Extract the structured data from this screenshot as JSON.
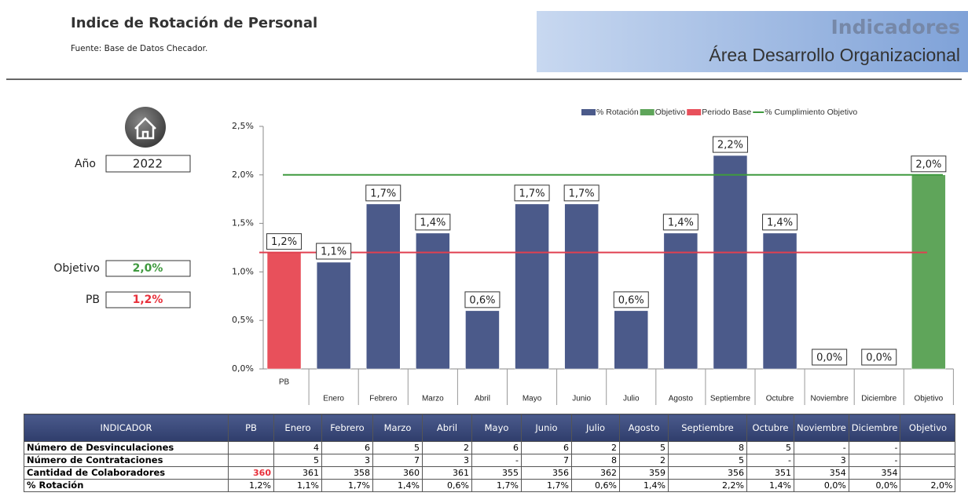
{
  "header": {
    "title": "Indice de Rotación de Personal",
    "source": "Fuente: Base de Datos Checador.",
    "banner_title": "Indicadores",
    "banner_subtitle": "Área Desarrollo Organizacional"
  },
  "filters": {
    "year_label": "Año",
    "year": 2022,
    "objective_label": "Objetivo",
    "objective": "2,0%",
    "pb_label": "PB",
    "pb": "1,2%"
  },
  "chart_data": {
    "type": "bar",
    "categories": [
      "PB",
      "Enero",
      "Febrero",
      "Marzo",
      "Abril",
      "Mayo",
      "Junio",
      "Julio",
      "Agosto",
      "Septiembre",
      "Octubre",
      "Noviembre",
      "Diciembre",
      "Objetivo"
    ],
    "values": [
      1.2,
      1.1,
      1.7,
      1.4,
      0.6,
      1.7,
      1.7,
      0.6,
      1.4,
      2.2,
      1.4,
      0.0,
      0.0,
      2.0
    ],
    "value_labels": [
      "1,2%",
      "1,1%",
      "1,7%",
      "1,4%",
      "0,6%",
      "1,7%",
      "1,7%",
      "0,6%",
      "1,4%",
      "2,2%",
      "1,4%",
      "0,0%",
      "0,0%",
      "2,0%"
    ],
    "bar_colors": [
      "#e8505b",
      "#4b5a8a",
      "#4b5a8a",
      "#4b5a8a",
      "#4b5a8a",
      "#4b5a8a",
      "#4b5a8a",
      "#4b5a8a",
      "#4b5a8a",
      "#4b5a8a",
      "#4b5a8a",
      "#4b5a8a",
      "#4b5a8a",
      "#5fa55a"
    ],
    "ylim": [
      0,
      2.5
    ],
    "yticks": [
      {
        "value": 0,
        "label": "0,0%"
      },
      {
        "value": 0.5,
        "label": "0,5%"
      },
      {
        "value": 1.0,
        "label": "1,0%"
      },
      {
        "value": 1.5,
        "label": "1,5%"
      },
      {
        "value": 2.0,
        "label": "2,0%"
      },
      {
        "value": 2.5,
        "label": "2,5%"
      }
    ],
    "legend": [
      {
        "name": "% Rotación",
        "color": "#4b5a8a",
        "kind": "bar"
      },
      {
        "name": "Objetivo",
        "color": "#5fa55a",
        "kind": "bar"
      },
      {
        "name": "Periodo Base",
        "color": "#e8505b",
        "kind": "bar"
      },
      {
        "name": "% Cumplimiento Objetivo",
        "color": "#3f9a3f",
        "kind": "line"
      }
    ],
    "reference_lines": [
      {
        "value": 2.0,
        "color": "#3f9a3f"
      },
      {
        "value": 1.2,
        "color": "#e04050"
      }
    ]
  },
  "table": {
    "columns": [
      "INDICADOR",
      "PB",
      "Enero",
      "Febrero",
      "Marzo",
      "Abril",
      "Mayo",
      "Junio",
      "Julio",
      "Agosto",
      "Septiembre",
      "Octubre",
      "Noviembre",
      "Diciembre",
      "Objetivo"
    ],
    "rows": [
      [
        "Número de Desvinculaciones",
        null,
        4,
        6,
        5,
        2,
        6,
        6,
        2,
        5,
        8,
        5,
        "-",
        "-",
        null
      ],
      [
        "Número de Contrataciones",
        null,
        5,
        3,
        7,
        3,
        "-",
        7,
        8,
        2,
        5,
        "-",
        3,
        "-",
        null
      ],
      [
        "Cantidad de Colaboradores",
        360,
        361,
        358,
        360,
        361,
        355,
        356,
        362,
        359,
        356,
        351,
        354,
        354,
        null
      ],
      [
        "% Rotación",
        "1,2%",
        "1,1%",
        "1,7%",
        "1,4%",
        "0,6%",
        "1,7%",
        "1,7%",
        "0,6%",
        "1,4%",
        "2,2%",
        "1,4%",
        "0,0%",
        "0,0%",
        "2,0%"
      ]
    ]
  }
}
